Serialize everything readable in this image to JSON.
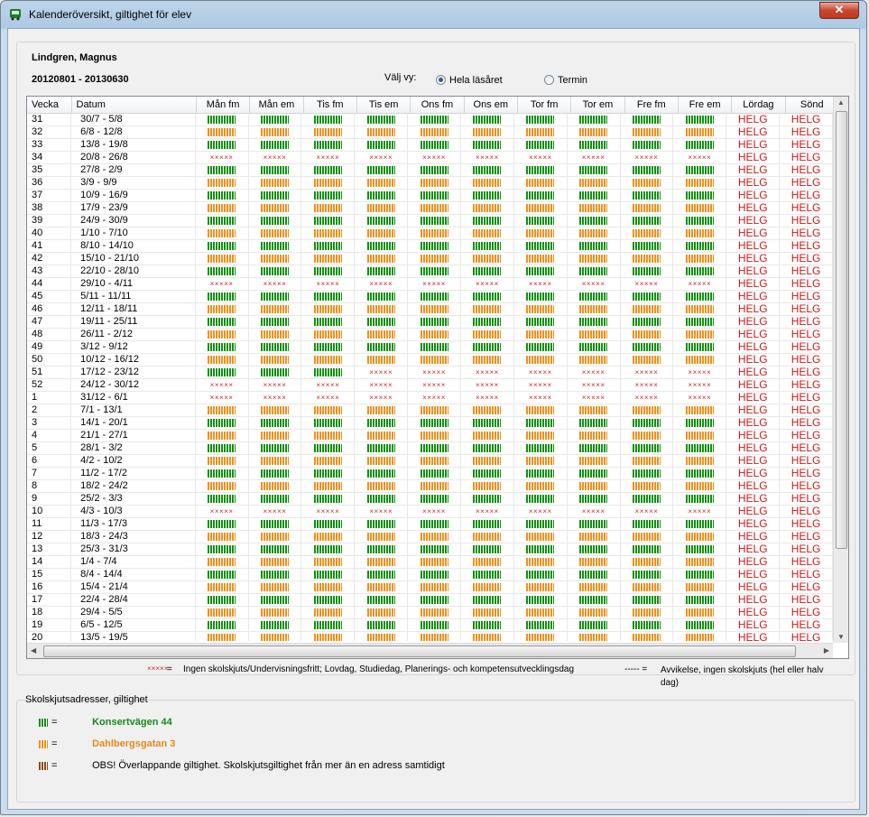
{
  "window": {
    "title": "Kalenderöversikt, giltighet för elev",
    "close_label": "✕"
  },
  "student": {
    "name": "Lindgren, Magnus",
    "date_range": "20120801 - 20130630"
  },
  "view": {
    "label": "Välj vy:",
    "options": [
      {
        "label": "Hela läsåret",
        "checked": true
      },
      {
        "label": "Termin",
        "checked": false
      }
    ]
  },
  "table": {
    "columns": [
      "Vecka",
      "Datum",
      "Mån fm",
      "Mån em",
      "Tis fm",
      "Tis em",
      "Ons fm",
      "Ons em",
      "Tor fm",
      "Tor em",
      "Fre fm",
      "Fre em",
      "Lördag",
      "Sönd"
    ],
    "weekend_text": "HELG",
    "noschool_text": "×××××",
    "rows": [
      {
        "week": "31",
        "dates": "30/7 - 5/8",
        "pattern": "G"
      },
      {
        "week": "32",
        "dates": "6/8 - 12/8",
        "pattern": "O"
      },
      {
        "week": "33",
        "dates": "13/8 - 19/8",
        "pattern": "G"
      },
      {
        "week": "34",
        "dates": "20/8 - 26/8",
        "pattern": "X"
      },
      {
        "week": "35",
        "dates": "27/8 - 2/9",
        "pattern": "G"
      },
      {
        "week": "36",
        "dates": "3/9 - 9/9",
        "pattern": "O"
      },
      {
        "week": "37",
        "dates": "10/9 - 16/9",
        "pattern": "G"
      },
      {
        "week": "38",
        "dates": "17/9 - 23/9",
        "pattern": "O"
      },
      {
        "week": "39",
        "dates": "24/9 - 30/9",
        "pattern": "G"
      },
      {
        "week": "40",
        "dates": "1/10 - 7/10",
        "pattern": "O"
      },
      {
        "week": "41",
        "dates": "8/10 - 14/10",
        "pattern": "G"
      },
      {
        "week": "42",
        "dates": "15/10 - 21/10",
        "pattern": "O"
      },
      {
        "week": "43",
        "dates": "22/10 - 28/10",
        "pattern": "G"
      },
      {
        "week": "44",
        "dates": "29/10 - 4/11",
        "pattern": "X"
      },
      {
        "week": "45",
        "dates": "5/11 - 11/11",
        "pattern": "G"
      },
      {
        "week": "46",
        "dates": "12/11 - 18/11",
        "pattern": "O"
      },
      {
        "week": "47",
        "dates": "19/11 - 25/11",
        "pattern": "G"
      },
      {
        "week": "48",
        "dates": "26/11 - 2/12",
        "pattern": "O"
      },
      {
        "week": "49",
        "dates": "3/12 - 9/12",
        "pattern": "G"
      },
      {
        "week": "50",
        "dates": "10/12 - 16/12",
        "pattern": "O"
      },
      {
        "week": "51",
        "dates": "17/12 - 23/12",
        "pattern": "G3X"
      },
      {
        "week": "52",
        "dates": "24/12 - 30/12",
        "pattern": "X"
      },
      {
        "week": "1",
        "dates": "31/12 - 6/1",
        "pattern": "X"
      },
      {
        "week": "2",
        "dates": "7/1 - 13/1",
        "pattern": "O"
      },
      {
        "week": "3",
        "dates": "14/1 - 20/1",
        "pattern": "G"
      },
      {
        "week": "4",
        "dates": "21/1 - 27/1",
        "pattern": "O"
      },
      {
        "week": "5",
        "dates": "28/1 - 3/2",
        "pattern": "G"
      },
      {
        "week": "6",
        "dates": "4/2 - 10/2",
        "pattern": "O"
      },
      {
        "week": "7",
        "dates": "11/2 - 17/2",
        "pattern": "G"
      },
      {
        "week": "8",
        "dates": "18/2 - 24/2",
        "pattern": "O"
      },
      {
        "week": "9",
        "dates": "25/2 - 3/3",
        "pattern": "G"
      },
      {
        "week": "10",
        "dates": "4/3 - 10/3",
        "pattern": "X"
      },
      {
        "week": "11",
        "dates": "11/3 - 17/3",
        "pattern": "G"
      },
      {
        "week": "12",
        "dates": "18/3 - 24/3",
        "pattern": "O"
      },
      {
        "week": "13",
        "dates": "25/3 - 31/3",
        "pattern": "G"
      },
      {
        "week": "14",
        "dates": "1/4 - 7/4",
        "pattern": "O"
      },
      {
        "week": "15",
        "dates": "8/4 - 14/4",
        "pattern": "G"
      },
      {
        "week": "16",
        "dates": "15/4 - 21/4",
        "pattern": "O"
      },
      {
        "week": "17",
        "dates": "22/4 - 28/4",
        "pattern": "G"
      },
      {
        "week": "18",
        "dates": "29/4 - 5/5",
        "pattern": "O"
      },
      {
        "week": "19",
        "dates": "6/5 - 12/5",
        "pattern": "G"
      },
      {
        "week": "20",
        "dates": "13/5 - 19/5",
        "pattern": "O"
      }
    ]
  },
  "legend": {
    "noschool_mark": "×××××",
    "eq": "=",
    "noschool_text": "Ingen skolskjuts/Undervisningsfritt; Lovdag, Studiedag, Planerings- och kompetensutvecklingsdag",
    "dash_mark": "----- =",
    "dash_text": "Avvikelse, ingen skolskjuts (hel eller halv dag)"
  },
  "addresses": {
    "title": "Skolskjutsadresser, giltighet",
    "items": [
      {
        "color": "g",
        "label": "Konsertvägen 44",
        "eq": "="
      },
      {
        "color": "o",
        "label": "Dahlbergsgatan 3",
        "eq": "="
      },
      {
        "color": "b",
        "label": "OBS! Överlappande giltighet. Skolskjutsgiltighet från mer än en adress samtidigt",
        "eq": "="
      }
    ]
  }
}
